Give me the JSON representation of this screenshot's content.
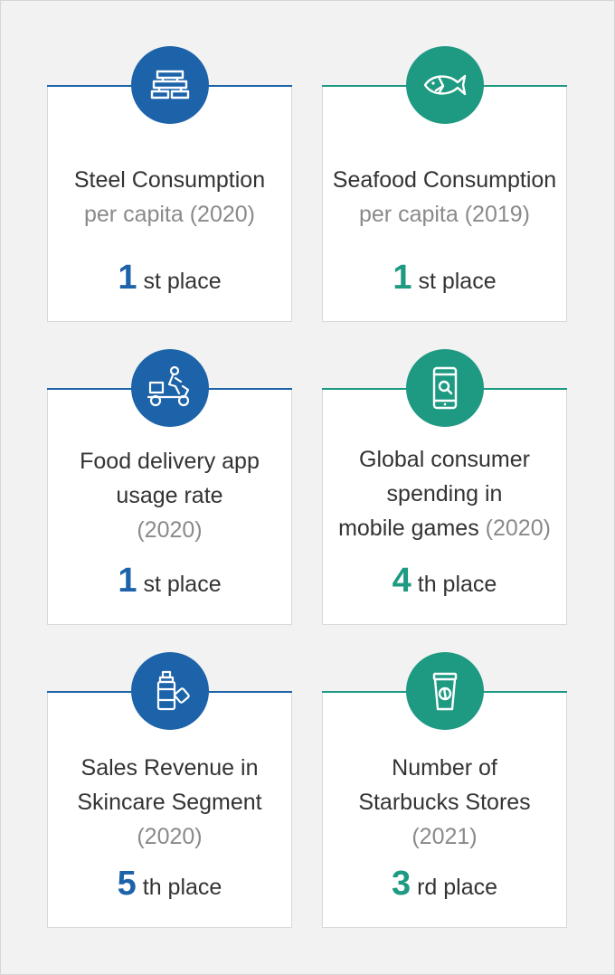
{
  "cards": [
    {
      "icon": "steel-beams-icon",
      "title_lines": [
        "Steel Consumption"
      ],
      "sub_line": "per capita (2020)",
      "year": "",
      "rank_num": "1",
      "rank_suffix": "st place",
      "color": "#1d63a9"
    },
    {
      "icon": "fish-icon",
      "title_lines": [
        "Seafood Consumption"
      ],
      "sub_line": "per capita (2019)",
      "year": "",
      "rank_num": "1",
      "rank_suffix": "st place",
      "color": "#1e9a82"
    },
    {
      "icon": "delivery-scooter-icon",
      "title_lines": [
        "Food delivery app",
        "usage rate"
      ],
      "sub_line": "",
      "year": "(2020)",
      "rank_num": "1",
      "rank_suffix": "st place",
      "color": "#1d63a9"
    },
    {
      "icon": "mobile-search-icon",
      "title_lines": [
        "Global consumer",
        "spending in",
        "mobile games"
      ],
      "sub_line": "",
      "year": "(2020)",
      "rank_num": "4",
      "rank_suffix": "th place",
      "color": "#1e9a82"
    },
    {
      "icon": "skincare-bottle-icon",
      "title_lines": [
        "Sales Revenue in",
        "Skincare Segment"
      ],
      "sub_line": "",
      "year": "(2020)",
      "rank_num": "5",
      "rank_suffix": "th place",
      "color": "#1d63a9"
    },
    {
      "icon": "coffee-cup-icon",
      "title_lines": [
        "Number of",
        "Starbucks Stores"
      ],
      "sub_line": "",
      "year": "(2021)",
      "rank_num": "3",
      "rank_suffix": "rd place",
      "color": "#1e9a82"
    }
  ]
}
